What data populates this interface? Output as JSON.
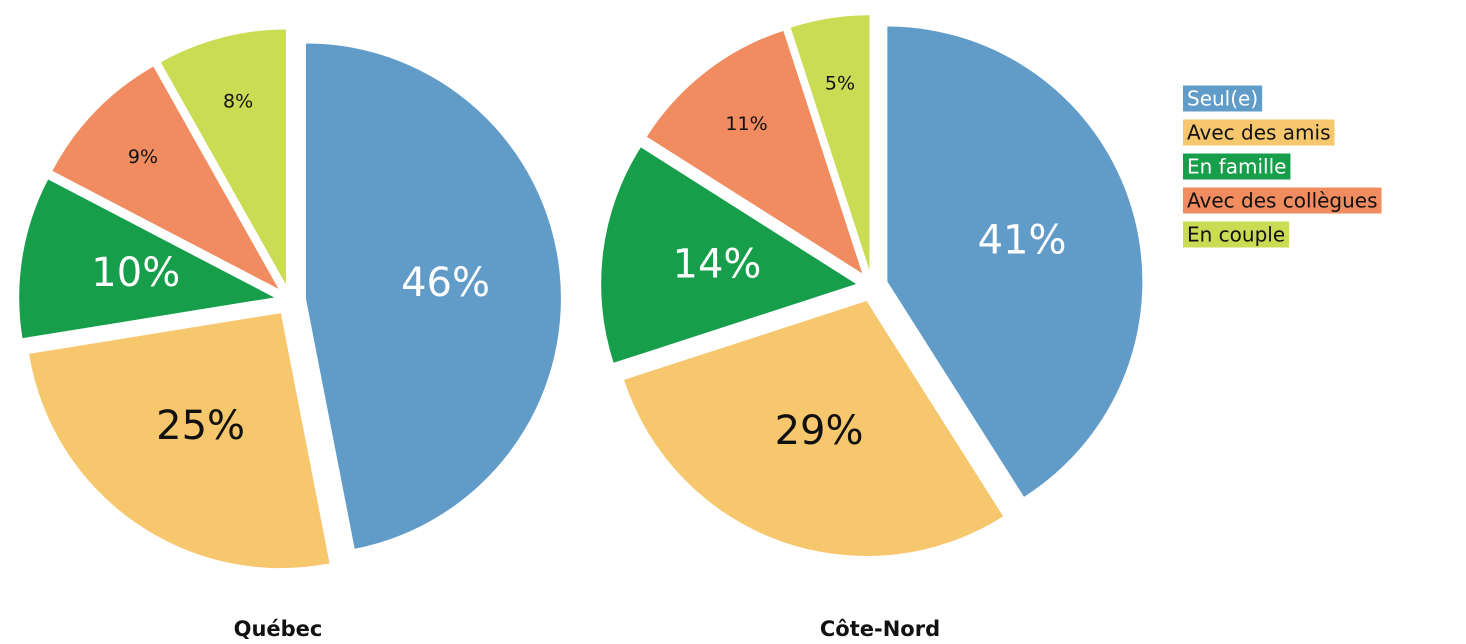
{
  "chart_data": [
    {
      "type": "pie",
      "title": "Québec",
      "categories": [
        "Seul(e)",
        "Avec des amis",
        "En famille",
        "Avec des collègues",
        "En couple"
      ],
      "values": [
        46,
        25,
        10,
        9,
        8
      ],
      "value_labels": [
        "46%",
        "25%",
        "10%",
        "9%",
        "8%"
      ],
      "colors": [
        "#619cc9",
        "#f7c76e",
        "#169e4a",
        "#f08c5f",
        "#c9dc54"
      ],
      "legend": "right"
    },
    {
      "type": "pie",
      "title": "Côte-Nord",
      "categories": [
        "Seul(e)",
        "Avec des amis",
        "En famille",
        "Avec des collègues",
        "En couple"
      ],
      "values": [
        41,
        29,
        14,
        11,
        5
      ],
      "value_labels": [
        "41%",
        "29%",
        "14%",
        "11%",
        "5%"
      ],
      "colors": [
        "#619cc9",
        "#f7c76e",
        "#169e4a",
        "#f08c5f",
        "#c9dc54"
      ]
    }
  ]
}
